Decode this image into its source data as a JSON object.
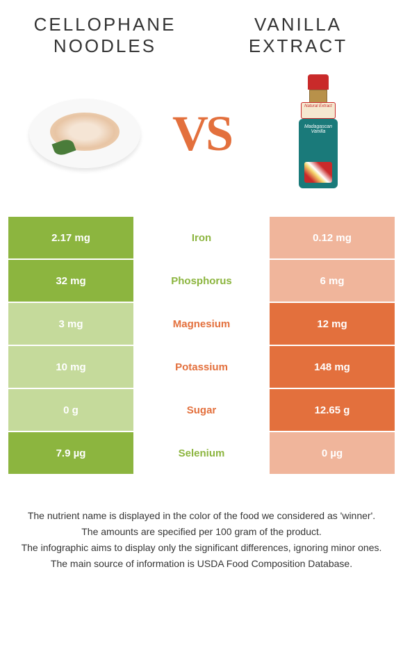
{
  "header": {
    "left_title_line1": "CELLOPHANE",
    "left_title_line2": "NOODLES",
    "right_title_line1": "VANILLA",
    "right_title_line2": "EXTRACT"
  },
  "vs_text": "VS",
  "colors": {
    "green": "#8cb53f",
    "green_pale": "#c5da9b",
    "orange": "#e3703d",
    "orange_pale": "#f0b59b",
    "text": "#333333",
    "white": "#ffffff"
  },
  "rows": [
    {
      "left": "2.17 mg",
      "label": "Iron",
      "right": "0.12 mg",
      "winner": "left"
    },
    {
      "left": "32 mg",
      "label": "Phosphorus",
      "right": "6 mg",
      "winner": "left"
    },
    {
      "left": "3 mg",
      "label": "Magnesium",
      "right": "12 mg",
      "winner": "right"
    },
    {
      "left": "10 mg",
      "label": "Potassium",
      "right": "148 mg",
      "winner": "right"
    },
    {
      "left": "0 g",
      "label": "Sugar",
      "right": "12.65 g",
      "winner": "right"
    },
    {
      "left": "7.9 µg",
      "label": "Selenium",
      "right": "0 µg",
      "winner": "left"
    }
  ],
  "footer": {
    "line1": "The nutrient name is displayed in the color of the food we considered as 'winner'.",
    "line2": "The amounts are specified per 100 gram of the product.",
    "line3": "The infographic aims to display only the significant differences, ignoring minor ones.",
    "line4": "The main source of information is USDA Food Composition Database."
  },
  "bottle_labels": {
    "neck": "Natural Extract",
    "body": "Madagascan Vanilla"
  }
}
